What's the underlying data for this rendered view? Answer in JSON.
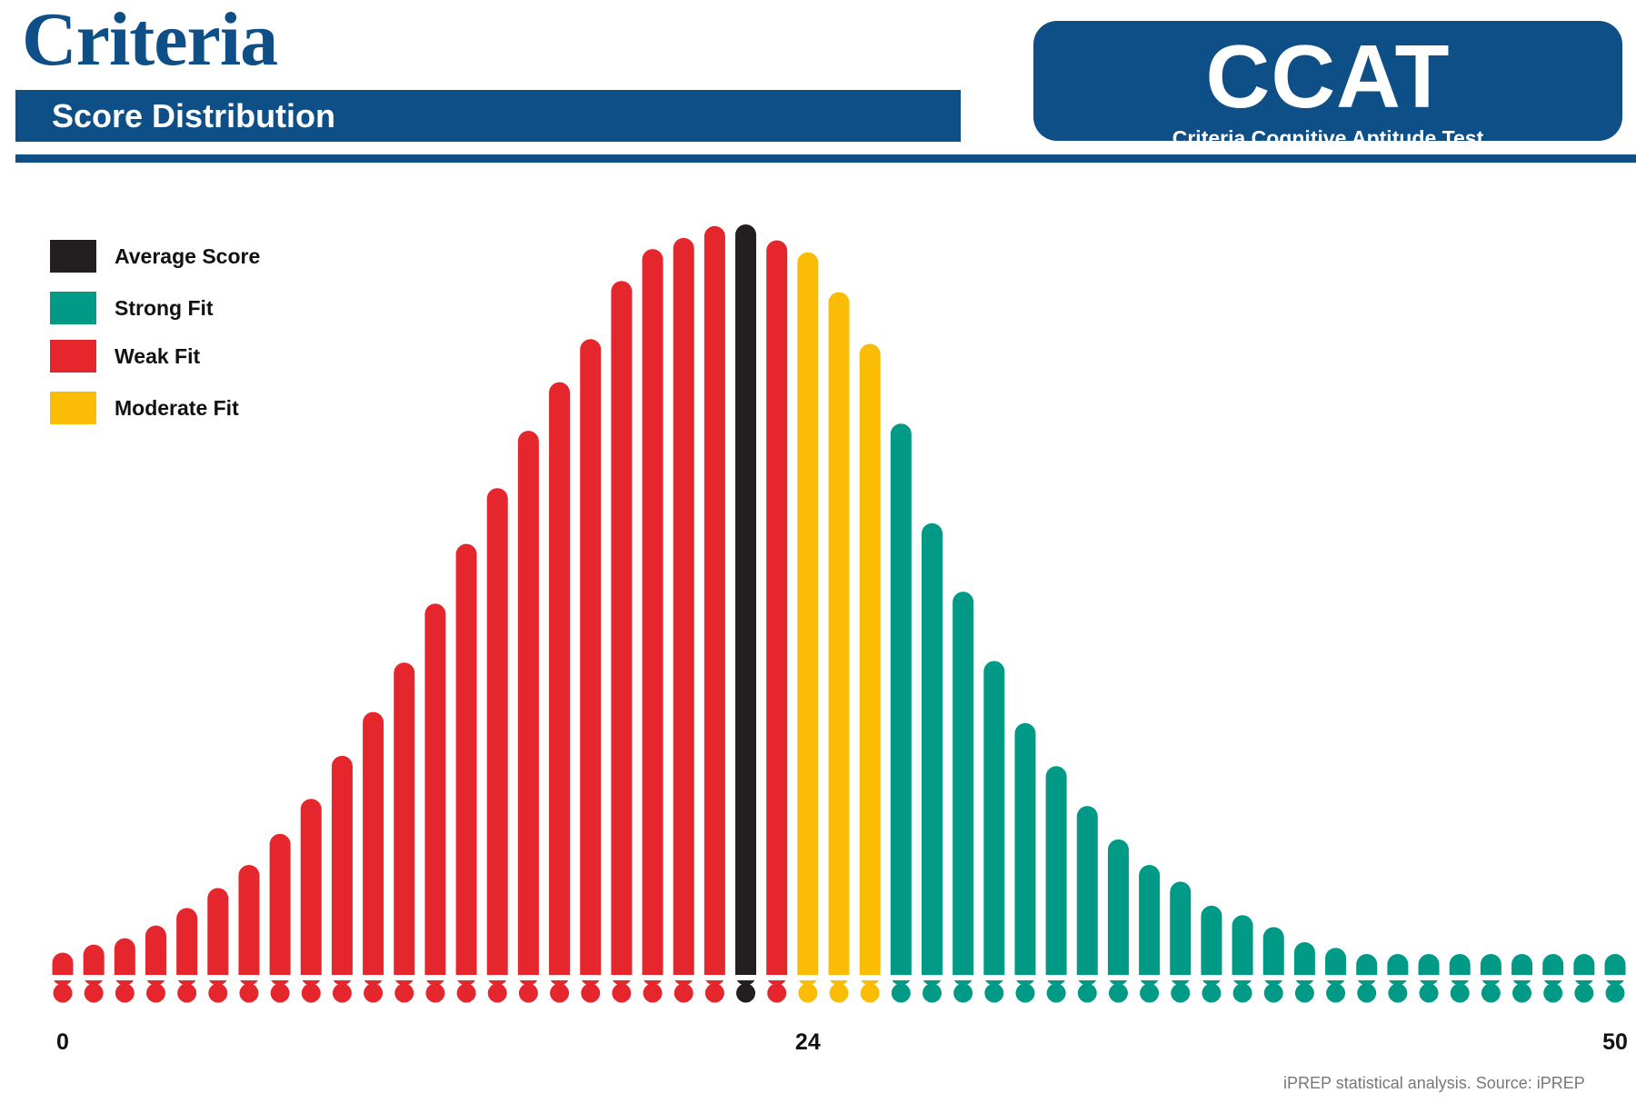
{
  "header": {
    "brand": "Criteria",
    "subtitle": "Score Distribution",
    "badge_title": "CCAT",
    "badge_subtitle": "Criteria Cognitive Aptitude Test"
  },
  "colors": {
    "brand_blue": "#0d4f86",
    "average": "#231f20",
    "strong_fit": "#009a86",
    "weak_fit": "#e5262d",
    "moderate_fit": "#fbbc05"
  },
  "legend": [
    {
      "label": "Average Score",
      "category": "average"
    },
    {
      "label": "Strong Fit",
      "category": "strong_fit"
    },
    {
      "label": "Weak Fit",
      "category": "weak_fit"
    },
    {
      "label": "Moderate Fit",
      "category": "moderate_fit"
    }
  ],
  "chart_data": {
    "type": "bar",
    "x": [
      0,
      1,
      2,
      3,
      4,
      5,
      6,
      7,
      8,
      9,
      10,
      11,
      12,
      13,
      14,
      15,
      16,
      17,
      18,
      19,
      20,
      21,
      22,
      23,
      24,
      25,
      26,
      27,
      28,
      29,
      30,
      31,
      32,
      33,
      34,
      35,
      36,
      37,
      38,
      39,
      40,
      41,
      42,
      43,
      44,
      45,
      46,
      47,
      48,
      49,
      50
    ],
    "values": [
      28,
      38,
      46,
      62,
      84,
      109,
      138,
      177,
      221,
      275,
      330,
      392,
      466,
      541,
      611,
      683,
      744,
      798,
      871,
      911,
      925,
      940,
      942,
      922,
      907,
      857,
      792,
      692,
      567,
      481,
      394,
      316,
      262,
      212,
      170,
      138,
      117,
      87,
      75,
      60,
      41,
      34,
      26,
      20,
      16,
      12,
      11,
      10,
      10,
      10,
      10
    ],
    "categories": [
      "weak_fit",
      "weak_fit",
      "weak_fit",
      "weak_fit",
      "weak_fit",
      "weak_fit",
      "weak_fit",
      "weak_fit",
      "weak_fit",
      "weak_fit",
      "weak_fit",
      "weak_fit",
      "weak_fit",
      "weak_fit",
      "weak_fit",
      "weak_fit",
      "weak_fit",
      "weak_fit",
      "weak_fit",
      "weak_fit",
      "weak_fit",
      "weak_fit",
      "average",
      "weak_fit",
      "moderate_fit",
      "moderate_fit",
      "moderate_fit",
      "strong_fit",
      "strong_fit",
      "strong_fit",
      "strong_fit",
      "strong_fit",
      "strong_fit",
      "strong_fit",
      "strong_fit",
      "strong_fit",
      "strong_fit",
      "strong_fit",
      "strong_fit",
      "strong_fit",
      "strong_fit",
      "strong_fit",
      "strong_fit",
      "strong_fit",
      "strong_fit",
      "strong_fit",
      "strong_fit",
      "strong_fit",
      "strong_fit",
      "strong_fit",
      "strong_fit"
    ],
    "x_tick_labels": [
      {
        "value": 0,
        "label": "0"
      },
      {
        "value": 24,
        "label": "24"
      },
      {
        "value": 50,
        "label": "50"
      }
    ],
    "ylim": [
      0,
      1000
    ],
    "grid": false,
    "legend_position": "top-left"
  },
  "footer": {
    "source": "iPREP statistical analysis. Source: iPREP"
  }
}
